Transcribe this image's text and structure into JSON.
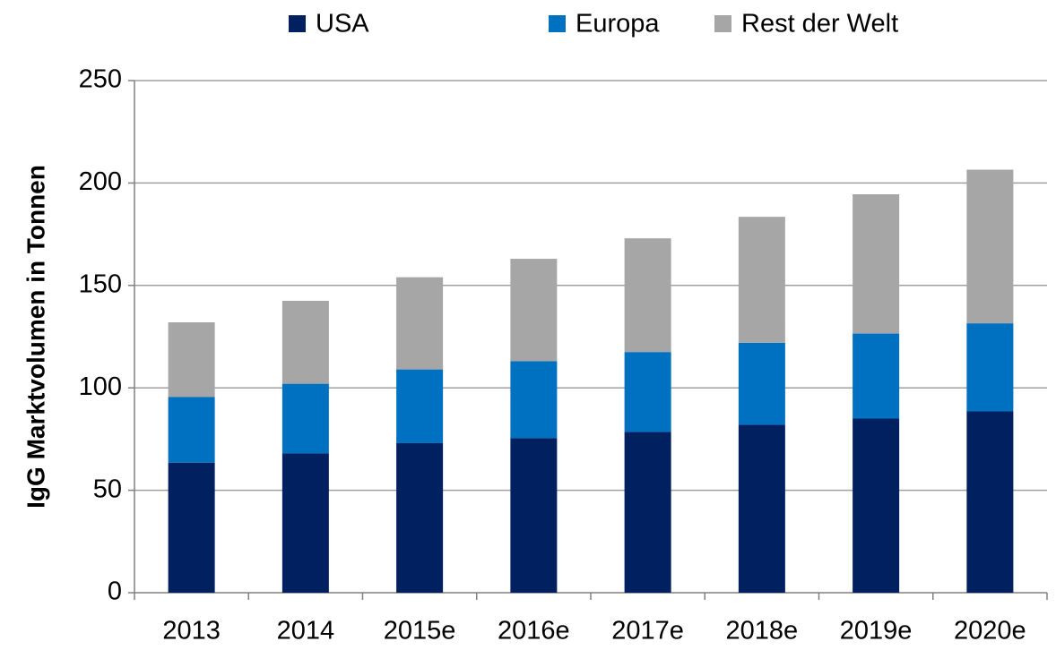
{
  "chart_data": {
    "type": "bar",
    "stacked": true,
    "y_label": "IgG Marktvolumen in Tonnen",
    "categories": [
      "2013",
      "2014",
      "2015e",
      "2016e",
      "2017e",
      "2018e",
      "2019e",
      "2020e"
    ],
    "series": [
      {
        "name": "USA",
        "color": "#002060",
        "values": [
          63.5,
          68,
          73,
          75.5,
          78.5,
          82,
          85,
          88.5
        ]
      },
      {
        "name": "Europa",
        "color": "#0070c0",
        "values": [
          32,
          34,
          36,
          37.5,
          39,
          40,
          41.5,
          43
        ]
      },
      {
        "name": "Rest der Welt",
        "color": "#a6a6a6",
        "values": [
          36.5,
          40.5,
          45,
          50,
          55.5,
          61.5,
          68,
          75
        ]
      }
    ],
    "ylim": [
      0,
      250
    ],
    "yticks": [
      0,
      50,
      100,
      150,
      200,
      250
    ],
    "grid": true,
    "legend": "top"
  }
}
